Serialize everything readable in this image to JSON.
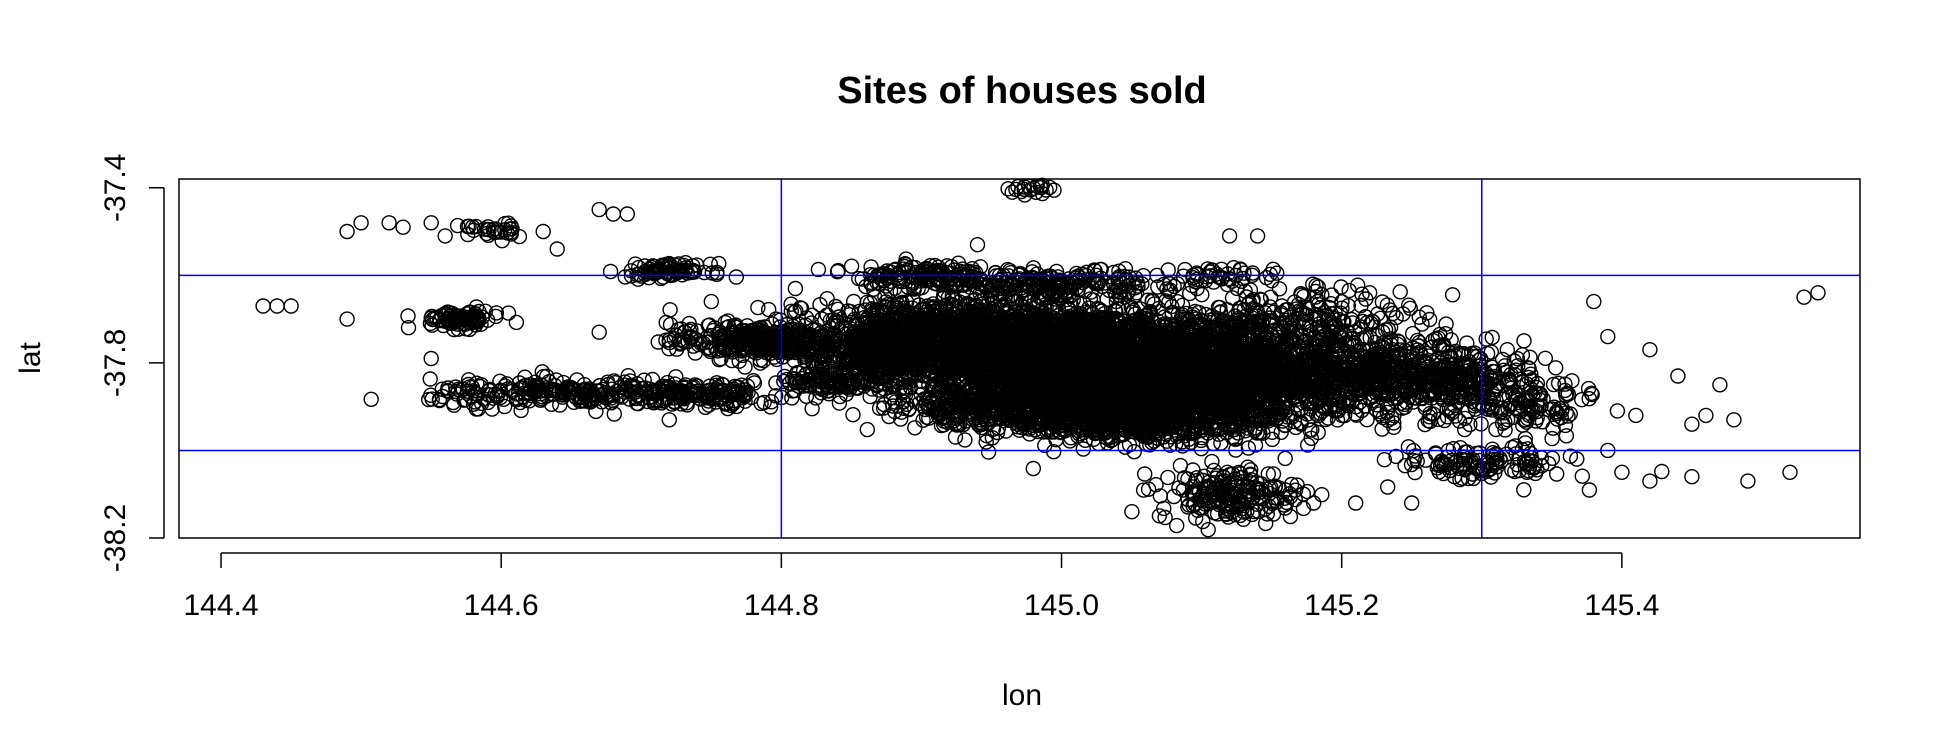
{
  "chart_data": {
    "type": "scatter",
    "title": "Sites of houses sold",
    "xlabel": "lon",
    "ylabel": "lat",
    "xlim": [
      144.37,
      145.57
    ],
    "ylim": [
      -38.2,
      -37.38
    ],
    "x_ticks": [
      {
        "value": 144.4,
        "label": "144.4"
      },
      {
        "value": 144.6,
        "label": "144.6"
      },
      {
        "value": 144.8,
        "label": "144.8"
      },
      {
        "value": 145.0,
        "label": "145.0"
      },
      {
        "value": 145.2,
        "label": "145.2"
      },
      {
        "value": 145.4,
        "label": "145.4"
      }
    ],
    "y_ticks": [
      {
        "value": -37.4,
        "label": "-37.4"
      },
      {
        "value": -37.8,
        "label": "-37.8"
      },
      {
        "value": -38.2,
        "label": "-38.2"
      }
    ],
    "reference_lines": {
      "color": "#0000ff",
      "vertical_x": [
        144.8,
        145.3
      ],
      "horizontal_y": [
        -37.6,
        -38.0
      ]
    },
    "marker": "open-circle",
    "marker_color": "#000000",
    "grid": false,
    "clusters": [
      {
        "lon": 145.02,
        "lat": -37.8,
        "sx": 0.07,
        "sy": 0.06,
        "n": 3200
      },
      {
        "lon": 144.92,
        "lat": -37.73,
        "sx": 0.05,
        "sy": 0.04,
        "n": 900
      },
      {
        "lon": 145.12,
        "lat": -37.83,
        "sx": 0.06,
        "sy": 0.05,
        "n": 1400
      },
      {
        "lon": 144.88,
        "lat": -37.78,
        "sx": 0.03,
        "sy": 0.03,
        "n": 400
      },
      {
        "lon": 145.06,
        "lat": -37.92,
        "sx": 0.05,
        "sy": 0.03,
        "n": 700
      },
      {
        "lon": 145.25,
        "lat": -37.83,
        "sx": 0.04,
        "sy": 0.04,
        "n": 500
      },
      {
        "lon": 145.12,
        "lat": -38.1,
        "sx": 0.025,
        "sy": 0.03,
        "n": 200
      },
      {
        "lon": 144.78,
        "lat": -37.75,
        "sx": 0.03,
        "sy": 0.02,
        "n": 300
      },
      {
        "lon": 144.84,
        "lat": -37.84,
        "sx": 0.02,
        "sy": 0.012,
        "n": 120
      },
      {
        "lon": 144.9,
        "lat": -37.6,
        "sx": 0.025,
        "sy": 0.015,
        "n": 150
      },
      {
        "lon": 144.65,
        "lat": -37.87,
        "sx": 0.05,
        "sy": 0.015,
        "n": 250
      },
      {
        "lon": 144.74,
        "lat": -37.87,
        "sx": 0.03,
        "sy": 0.015,
        "n": 150
      },
      {
        "lon": 144.72,
        "lat": -37.59,
        "sx": 0.015,
        "sy": 0.008,
        "n": 80
      },
      {
        "lon": 144.57,
        "lat": -37.7,
        "sx": 0.015,
        "sy": 0.01,
        "n": 80
      },
      {
        "lon": 145.3,
        "lat": -38.03,
        "sx": 0.03,
        "sy": 0.02,
        "n": 120
      },
      {
        "lon": 145.32,
        "lat": -37.9,
        "sx": 0.03,
        "sy": 0.04,
        "n": 150
      },
      {
        "lon": 144.59,
        "lat": -37.5,
        "sx": 0.01,
        "sy": 0.01,
        "n": 30
      },
      {
        "lon": 145.0,
        "lat": -37.62,
        "sx": 0.04,
        "sy": 0.015,
        "n": 200
      },
      {
        "lon": 145.12,
        "lat": -37.6,
        "sx": 0.02,
        "sy": 0.01,
        "n": 40
      },
      {
        "lon": 144.98,
        "lat": -37.4,
        "sx": 0.01,
        "sy": 0.006,
        "n": 25
      },
      {
        "lon": 145.18,
        "lat": -37.7,
        "sx": 0.04,
        "sy": 0.04,
        "n": 200
      },
      {
        "lon": 144.96,
        "lat": -37.9,
        "sx": 0.04,
        "sy": 0.02,
        "n": 300
      }
    ],
    "outliers": [
      [
        144.43,
        -37.67
      ],
      [
        144.44,
        -37.67
      ],
      [
        144.45,
        -37.67
      ],
      [
        144.49,
        -37.7
      ],
      [
        144.49,
        -37.5
      ],
      [
        144.5,
        -37.48
      ],
      [
        144.52,
        -37.48
      ],
      [
        144.53,
        -37.49
      ],
      [
        144.55,
        -37.48
      ],
      [
        144.56,
        -37.51
      ],
      [
        144.55,
        -37.79
      ],
      [
        144.63,
        -37.5
      ],
      [
        144.64,
        -37.54
      ],
      [
        144.67,
        -37.45
      ],
      [
        144.68,
        -37.46
      ],
      [
        144.69,
        -37.46
      ],
      [
        144.67,
        -37.73
      ],
      [
        144.72,
        -37.93
      ],
      [
        144.75,
        -37.66
      ],
      [
        144.81,
        -37.63
      ],
      [
        144.94,
        -37.53
      ],
      [
        144.96,
        -37.39
      ],
      [
        145.01,
        -37.39
      ],
      [
        145.12,
        -37.51
      ],
      [
        145.14,
        -37.51
      ],
      [
        145.22,
        -37.64
      ],
      [
        145.38,
        -37.66
      ],
      [
        145.39,
        -37.74
      ],
      [
        145.42,
        -37.77
      ],
      [
        145.44,
        -37.83
      ],
      [
        145.47,
        -37.85
      ],
      [
        145.41,
        -37.92
      ],
      [
        145.45,
        -37.94
      ],
      [
        145.46,
        -37.92
      ],
      [
        145.48,
        -37.93
      ],
      [
        145.53,
        -37.65
      ],
      [
        145.54,
        -37.64
      ],
      [
        145.39,
        -38.0
      ],
      [
        145.4,
        -38.05
      ],
      [
        145.45,
        -38.06
      ],
      [
        145.49,
        -38.07
      ],
      [
        145.52,
        -38.05
      ],
      [
        145.42,
        -38.07
      ],
      [
        145.33,
        -38.09
      ],
      [
        145.25,
        -38.12
      ],
      [
        145.18,
        -38.12
      ],
      [
        145.21,
        -38.12
      ]
    ]
  }
}
